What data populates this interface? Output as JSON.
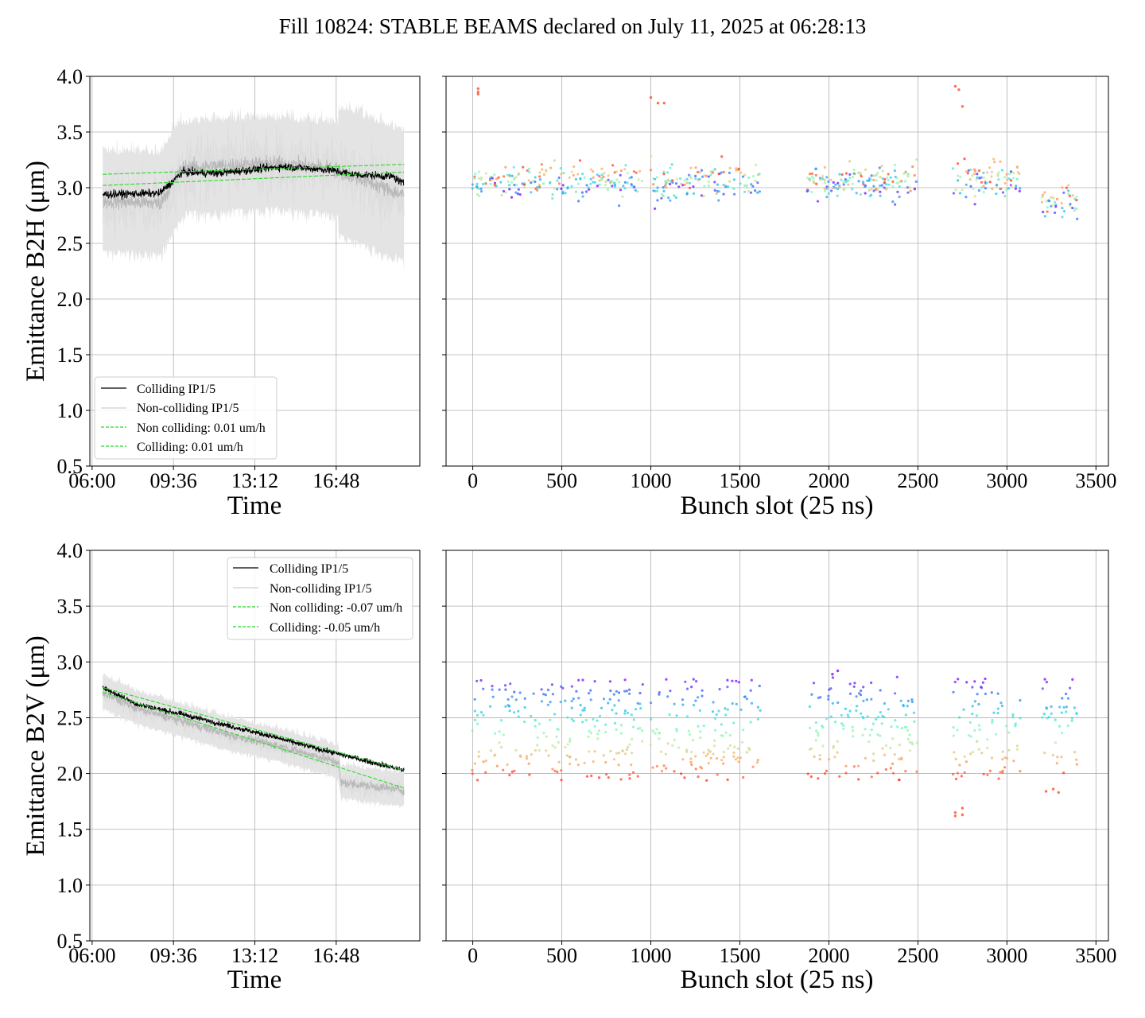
{
  "figure": {
    "title": "Fill 10824: STABLE BEAMS declared on July 11, 2025 at 06:28:13"
  },
  "chart_data": [
    {
      "id": "b2h-time",
      "type": "line",
      "xlabel": "Time",
      "ylabel": "Emittance B2H (μm)",
      "x_ticks": [
        "06:00",
        "09:36",
        "13:12",
        "16:48"
      ],
      "x_tick_hours": [
        6.0,
        9.6,
        13.2,
        16.8
      ],
      "xlim_hours": [
        5.9,
        20.5
      ],
      "y_ticks": [
        "0.5",
        "1.0",
        "1.5",
        "2.0",
        "2.5",
        "3.0",
        "3.5",
        "4.0"
      ],
      "ylim": [
        0.5,
        4.0
      ],
      "grid": true,
      "legend_position": "lower-left",
      "legend": [
        "Colliding IP1/5",
        "Non-colliding IP1/5",
        "Non colliding: 0.01 um/h",
        "Colliding: 0.01 um/h"
      ],
      "colors": {
        "colliding": "#000000",
        "noncolliding": "#b8b8b8",
        "spread": "#e4e4e4",
        "fit": "#22dd22"
      },
      "series": [
        {
          "name": "Colliding IP1/5",
          "knots_hours": [
            6.47,
            9.0,
            10.0,
            11.5,
            13.0,
            14.5,
            16.5,
            17.6,
            19.3,
            19.8
          ],
          "knots_um": [
            2.94,
            2.95,
            3.14,
            3.13,
            3.16,
            3.19,
            3.16,
            3.12,
            3.1,
            3.03
          ]
        },
        {
          "name": "Non-colliding IP1/5",
          "knots_hours": [
            6.47,
            9.0,
            10.0,
            12.0,
            14.0,
            16.5,
            17.6,
            19.8
          ],
          "knots_um": [
            2.88,
            2.86,
            3.18,
            3.2,
            3.22,
            3.18,
            3.1,
            2.93
          ]
        },
        {
          "name": "Non colliding: 0.01 um/h",
          "x_hours": [
            6.47,
            19.8
          ],
          "y_um": [
            3.12,
            3.21
          ]
        },
        {
          "name": "Colliding: 0.01 um/h",
          "x_hours": [
            6.47,
            19.8
          ],
          "y_um": [
            3.02,
            3.14
          ]
        }
      ]
    },
    {
      "id": "b2h-slots",
      "type": "scatter",
      "xlabel": "Bunch slot (25 ns)",
      "x_ticks": [
        "0",
        "500",
        "1000",
        "1500",
        "2000",
        "2500",
        "3000",
        "3500"
      ],
      "xlim": [
        -150,
        3570
      ],
      "ylim": [
        0.5,
        4.0
      ],
      "grid": true,
      "colormap": "rainbow",
      "trains": [
        [
          0,
          80
        ],
        [
          100,
          960
        ],
        [
          1000,
          1620
        ],
        [
          1880,
          2500
        ],
        [
          2700,
          3080
        ],
        [
          3200,
          3400
        ]
      ],
      "spread_um": [
        2.7,
        3.5
      ],
      "center_um": 3.06,
      "outliers": [
        {
          "x": 30,
          "y": 3.89
        },
        {
          "x": 30,
          "y": 3.86
        },
        {
          "x": 30,
          "y": 3.84
        },
        {
          "x": 1000,
          "y": 3.81
        },
        {
          "x": 1040,
          "y": 3.76
        },
        {
          "x": 1075,
          "y": 3.76
        },
        {
          "x": 2710,
          "y": 3.91
        },
        {
          "x": 2730,
          "y": 3.88
        },
        {
          "x": 2750,
          "y": 3.73
        }
      ]
    },
    {
      "id": "b2v-time",
      "type": "line",
      "xlabel": "Time",
      "ylabel": "Emittance B2V (μm)",
      "x_ticks": [
        "06:00",
        "09:36",
        "13:12",
        "16:48"
      ],
      "x_tick_hours": [
        6.0,
        9.6,
        13.2,
        16.8
      ],
      "xlim_hours": [
        5.9,
        20.5
      ],
      "y_ticks": [
        "0.5",
        "1.0",
        "1.5",
        "2.0",
        "2.5",
        "3.0",
        "3.5",
        "4.0"
      ],
      "ylim": [
        0.5,
        4.0
      ],
      "grid": true,
      "legend_position": "upper-right",
      "legend": [
        "Colliding IP1/5",
        "Non-colliding IP1/5",
        "Non colliding: -0.07 um/h",
        "Colliding: -0.05 um/h"
      ],
      "colors": {
        "colliding": "#000000",
        "noncolliding": "#b8b8b8",
        "spread": "#e4e4e4",
        "fit": "#22dd22"
      },
      "series": [
        {
          "name": "Colliding IP1/5",
          "knots_hours": [
            6.47,
            8.0,
            10.0,
            12.0,
            14.0,
            16.0,
            18.0,
            19.8
          ],
          "knots_um": [
            2.77,
            2.62,
            2.53,
            2.43,
            2.33,
            2.22,
            2.12,
            2.03
          ]
        },
        {
          "name": "Non-colliding IP1/5",
          "knots_hours": [
            6.47,
            8.0,
            10.0,
            12.0,
            14.0,
            16.0,
            16.9,
            17.0,
            19.8
          ],
          "knots_um": [
            2.73,
            2.58,
            2.47,
            2.35,
            2.26,
            2.15,
            2.1,
            1.92,
            1.85
          ]
        },
        {
          "name": "Non colliding: -0.07 um/h",
          "x_hours": [
            6.47,
            19.8
          ],
          "y_um": [
            2.73,
            1.87
          ]
        },
        {
          "name": "Colliding: -0.05 um/h",
          "x_hours": [
            6.47,
            19.8
          ],
          "y_um": [
            2.77,
            2.03
          ]
        }
      ]
    },
    {
      "id": "b2v-slots",
      "type": "scatter",
      "xlabel": "Bunch slot (25 ns)",
      "x_ticks": [
        "0",
        "500",
        "1000",
        "1500",
        "2000",
        "2500",
        "3000",
        "3500"
      ],
      "xlim": [
        -150,
        3570
      ],
      "ylim": [
        0.5,
        4.0
      ],
      "grid": true,
      "colormap": "rainbow",
      "trains": [
        [
          0,
          80
        ],
        [
          100,
          960
        ],
        [
          1000,
          1620
        ],
        [
          1880,
          2500
        ],
        [
          2700,
          3080
        ],
        [
          3200,
          3400
        ]
      ],
      "spread_um": [
        1.95,
        2.85
      ],
      "center_um": 2.4,
      "outliers": [
        {
          "x": 2050,
          "y": 2.92
        },
        {
          "x": 2020,
          "y": 2.89
        },
        {
          "x": 2710,
          "y": 1.62
        },
        {
          "x": 2710,
          "y": 1.65
        },
        {
          "x": 2750,
          "y": 1.63
        },
        {
          "x": 2750,
          "y": 1.69
        },
        {
          "x": 3220,
          "y": 1.84
        },
        {
          "x": 3260,
          "y": 1.86
        },
        {
          "x": 3290,
          "y": 1.83
        }
      ]
    }
  ]
}
